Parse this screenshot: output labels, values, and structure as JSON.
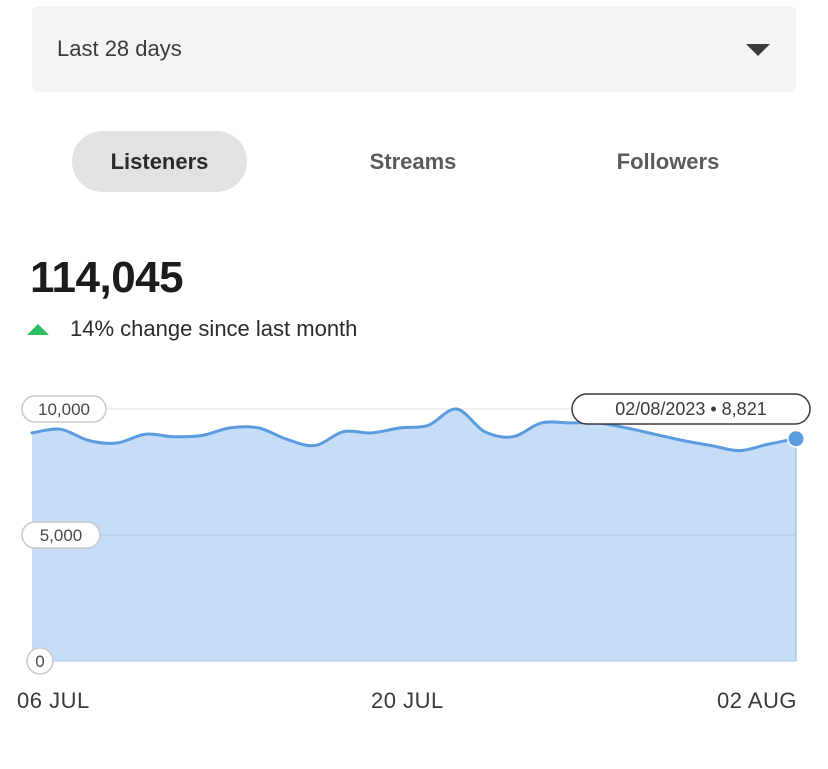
{
  "range_select": {
    "selected": "Last 28 days"
  },
  "tabs": [
    {
      "label": "Listeners",
      "active": true
    },
    {
      "label": "Streams",
      "active": false
    },
    {
      "label": "Followers",
      "active": false
    }
  ],
  "metric": {
    "value": "114,045",
    "change_text": "14% change since last month",
    "trend": "up"
  },
  "tooltip": {
    "date": "02/08/2023",
    "value": "8,821"
  },
  "colors": {
    "line": "#5b9bdf",
    "fill": "#c6ddf8",
    "up_arrow": "#2fbe5f",
    "active_tab_bg": "#e2e2e2",
    "select_bg": "#f4f4f4"
  },
  "chart_data": {
    "type": "area",
    "x_tick_labels": [
      "06 JUL",
      "20 JUL",
      "02 AUG"
    ],
    "y_tick_labels": [
      "10,000",
      "5,000",
      "0"
    ],
    "y_ticks": [
      10000,
      5000,
      0
    ],
    "ylim": [
      0,
      10000
    ],
    "x": [
      "06 JUL",
      "07 JUL",
      "08 JUL",
      "09 JUL",
      "10 JUL",
      "11 JUL",
      "12 JUL",
      "13 JUL",
      "14 JUL",
      "15 JUL",
      "16 JUL",
      "17 JUL",
      "18 JUL",
      "19 JUL",
      "20 JUL",
      "21 JUL",
      "22 JUL",
      "23 JUL",
      "24 JUL",
      "25 JUL",
      "26 JUL",
      "27 JUL",
      "28 JUL",
      "29 JUL",
      "30 JUL",
      "31 JUL",
      "01 AUG",
      "02 AUG"
    ],
    "values": [
      9050,
      9200,
      8750,
      8650,
      9000,
      8900,
      8950,
      9250,
      9250,
      8800,
      8550,
      9100,
      9050,
      9250,
      9350,
      10000,
      9100,
      8900,
      9450,
      9450,
      9450,
      9250,
      9000,
      8750,
      8550,
      8350,
      8600,
      8821
    ],
    "grid": true
  }
}
